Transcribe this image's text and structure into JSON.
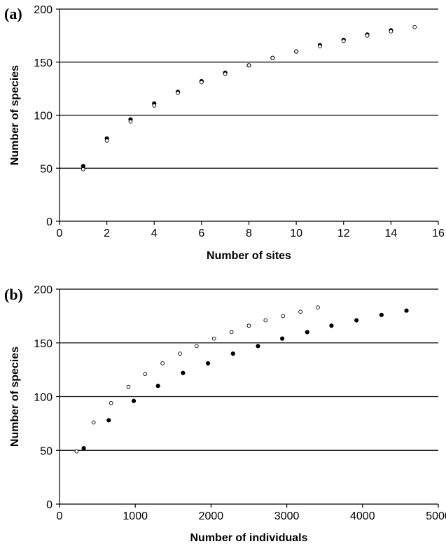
{
  "chart_data": [
    {
      "type": "scatter",
      "panel_label": "(a)",
      "xlabel": "Number of sites",
      "ylabel": "Number of species",
      "xlim": [
        0,
        16
      ],
      "ylim": [
        0,
        200
      ],
      "x_ticks": [
        0,
        2,
        4,
        6,
        8,
        10,
        12,
        14,
        16
      ],
      "y_ticks": [
        0,
        50,
        100,
        150,
        200
      ],
      "grid": "horizontal",
      "series": [
        {
          "marker": "filled",
          "color": "#000000",
          "points": [
            [
              1,
              52
            ],
            [
              2,
              78
            ],
            [
              3,
              96
            ],
            [
              4,
              111
            ],
            [
              5,
              122
            ],
            [
              6,
              132
            ],
            [
              7,
              140
            ],
            [
              8,
              147
            ],
            [
              9,
              154
            ],
            [
              10,
              160
            ],
            [
              11,
              166
            ],
            [
              12,
              171
            ],
            [
              13,
              176
            ],
            [
              14,
              180
            ]
          ]
        },
        {
          "marker": "open",
          "color": "#000000",
          "points": [
            [
              1,
              49
            ],
            [
              2,
              76
            ],
            [
              3,
              94
            ],
            [
              4,
              109
            ],
            [
              5,
              121
            ],
            [
              6,
              131
            ],
            [
              7,
              139
            ],
            [
              8,
              147
            ],
            [
              9,
              154
            ],
            [
              10,
              160
            ],
            [
              11,
              165
            ],
            [
              12,
              170
            ],
            [
              13,
              175
            ],
            [
              14,
              179
            ],
            [
              15,
              183
            ]
          ]
        }
      ]
    },
    {
      "type": "scatter",
      "panel_label": "(b)",
      "xlabel": "Number of individuals",
      "ylabel": "Number of species",
      "xlim": [
        0,
        5000
      ],
      "ylim": [
        0,
        200
      ],
      "x_ticks": [
        0,
        1000,
        2000,
        3000,
        4000,
        5000
      ],
      "y_ticks": [
        0,
        50,
        100,
        150,
        200
      ],
      "grid": "horizontal",
      "series": [
        {
          "marker": "filled",
          "color": "#000000",
          "points": [
            [
              320,
              52
            ],
            [
              650,
              78
            ],
            [
              980,
              96
            ],
            [
              1300,
              110
            ],
            [
              1630,
              122
            ],
            [
              1960,
              131
            ],
            [
              2290,
              140
            ],
            [
              2620,
              147
            ],
            [
              2940,
              154
            ],
            [
              3270,
              160
            ],
            [
              3590,
              166
            ],
            [
              3920,
              171
            ],
            [
              4250,
              176
            ],
            [
              4580,
              180
            ]
          ]
        },
        {
          "marker": "open",
          "color": "#000000",
          "points": [
            [
              225,
              49
            ],
            [
              450,
              76
            ],
            [
              680,
              94
            ],
            [
              910,
              109
            ],
            [
              1130,
              121
            ],
            [
              1360,
              131
            ],
            [
              1590,
              140
            ],
            [
              1810,
              147
            ],
            [
              2040,
              154
            ],
            [
              2270,
              160
            ],
            [
              2500,
              166
            ],
            [
              2720,
              171
            ],
            [
              2950,
              175
            ],
            [
              3180,
              179
            ],
            [
              3410,
              183
            ]
          ]
        }
      ]
    }
  ]
}
